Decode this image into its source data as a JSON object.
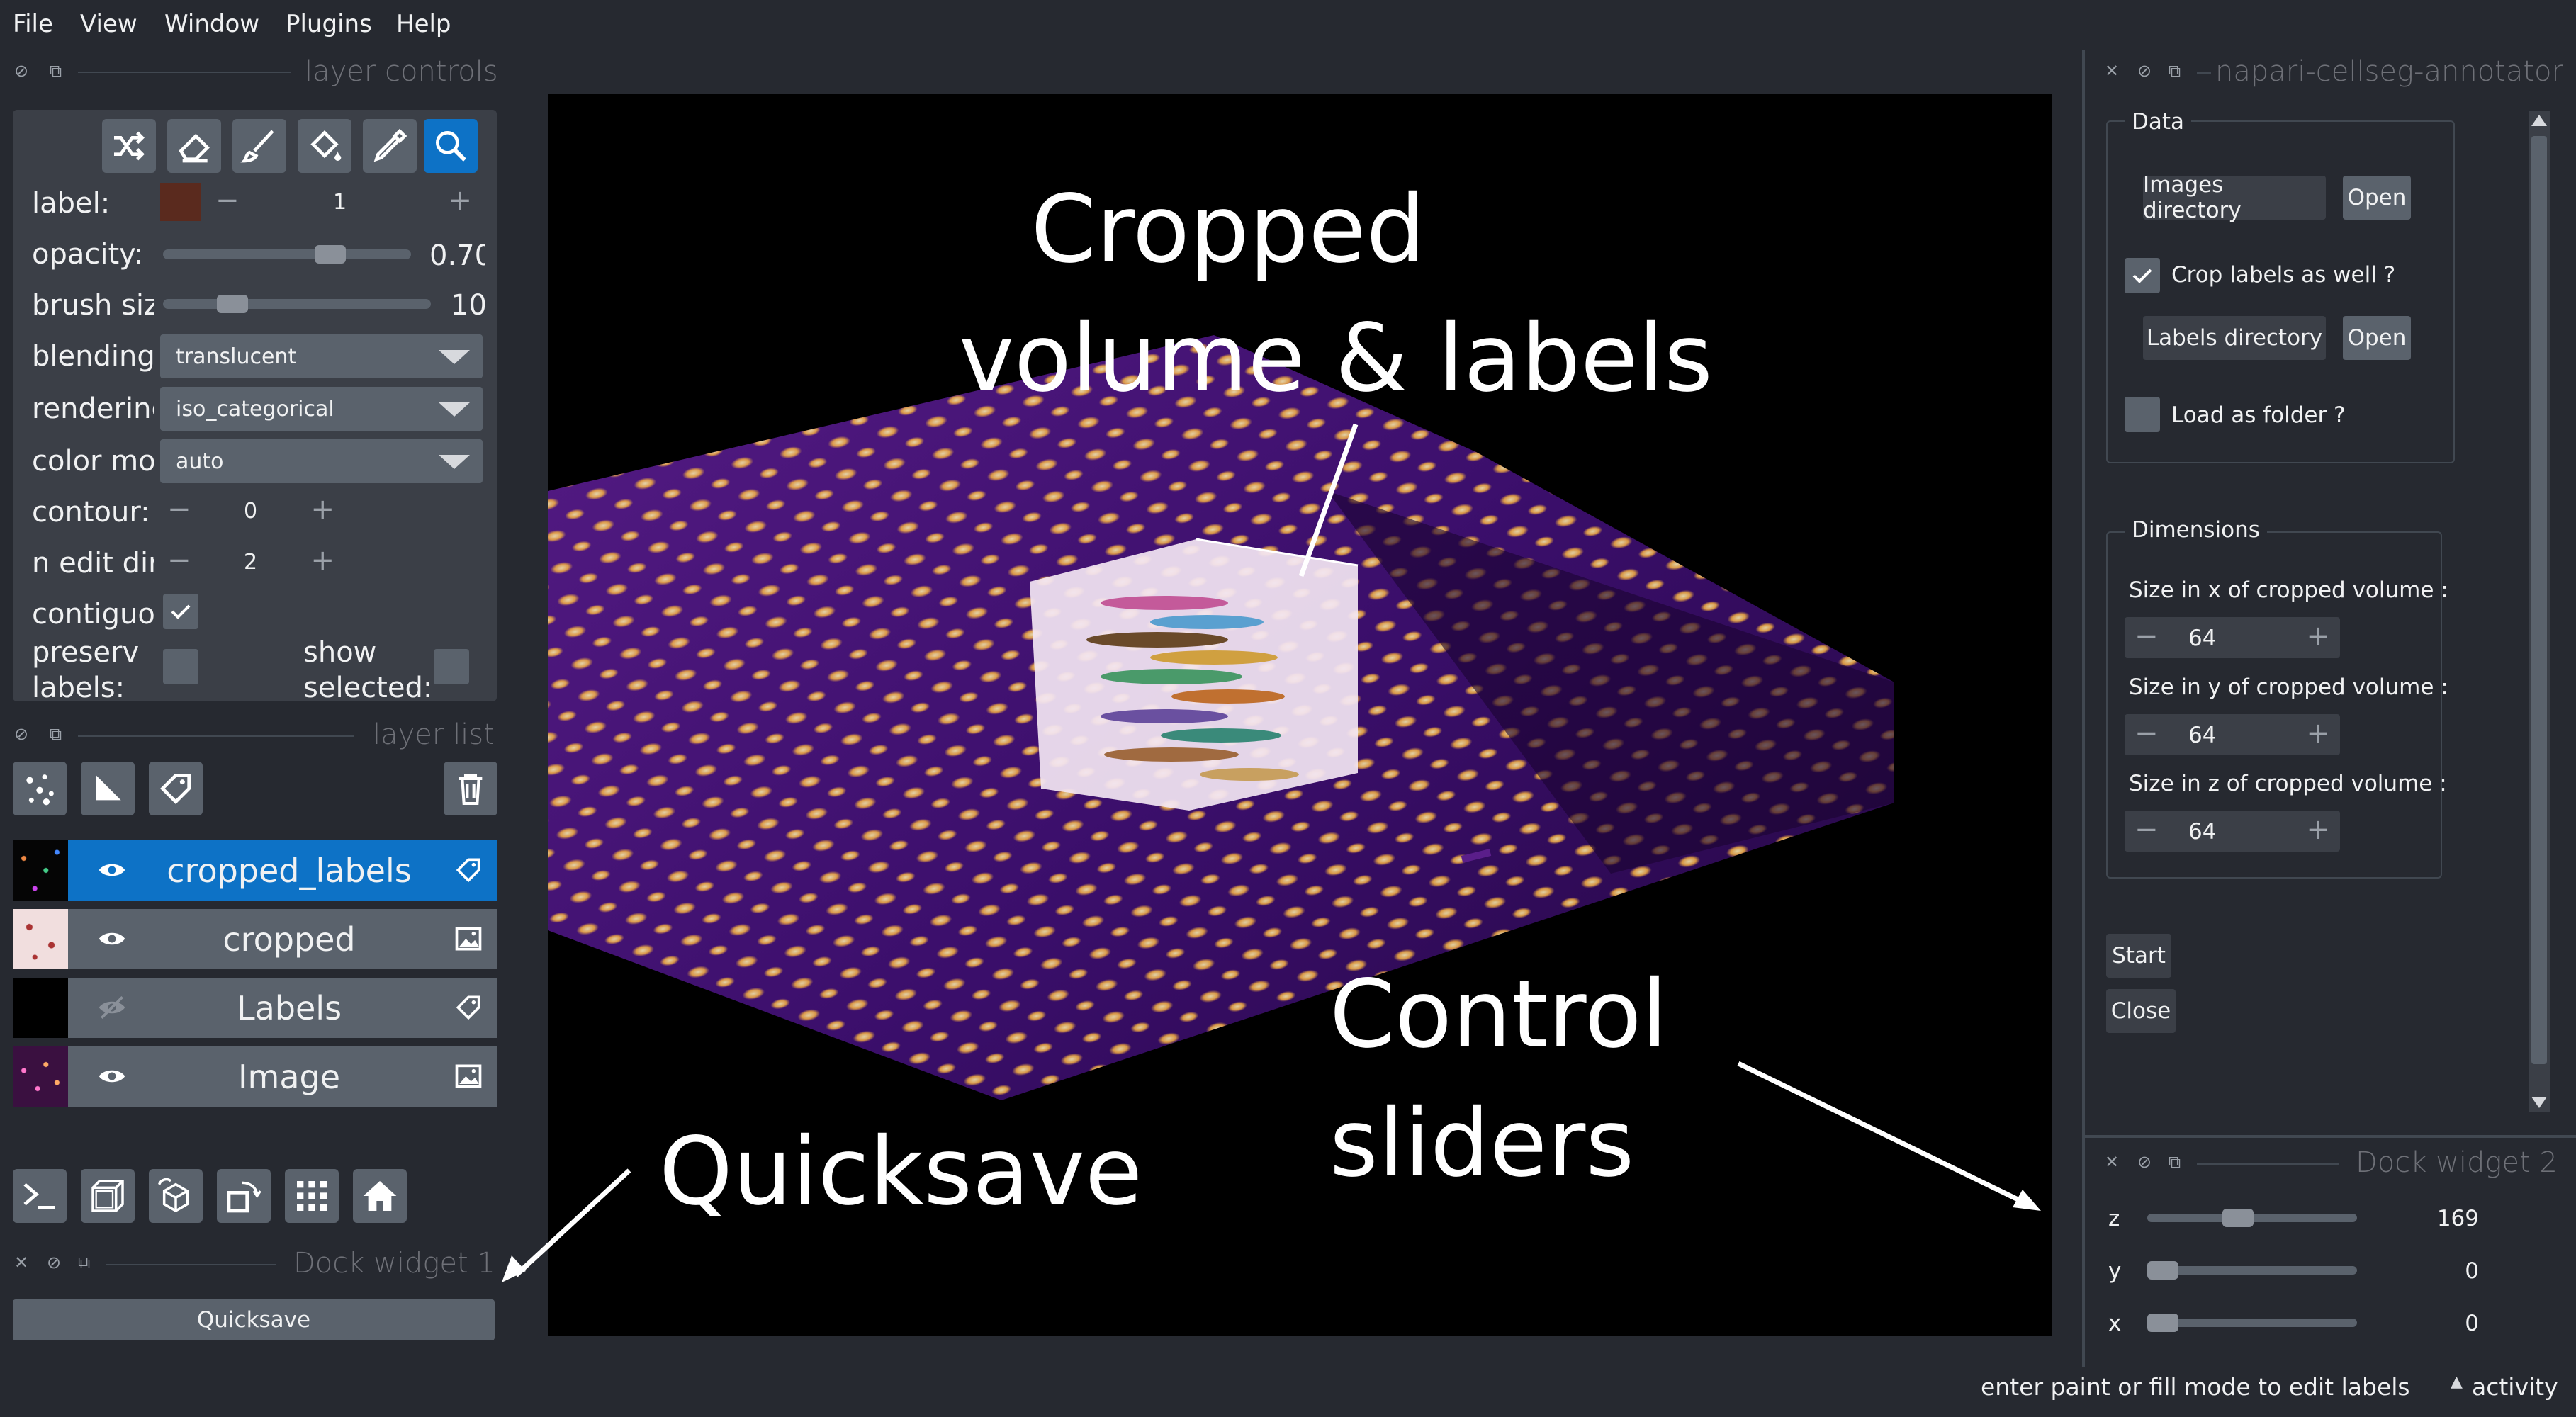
{
  "menu": [
    "File",
    "View",
    "Window",
    "Plugins",
    "Help"
  ],
  "layer_controls": {
    "title": "layer controls",
    "label_label": "label:",
    "label_value": "1",
    "label_color": "#5a2a1e",
    "opacity_label": "opacity:",
    "opacity_value": "0.70",
    "opacity_fraction": 0.7,
    "brush_label": "brush siz",
    "brush_value": "10",
    "blending_label": "blending:",
    "blending_value": "translucent",
    "rendering_label": "rendering",
    "rendering_value": "iso_categorical",
    "color_mode_label": "color mo",
    "color_mode_value": "auto",
    "contour_label": "contour:",
    "contour_value": "0",
    "n_edit_label": "n edit dir",
    "n_edit_value": "2",
    "contiguous_label": "contiguou",
    "preserve_label": "preserve labels:",
    "show_selected_label": "show selected:",
    "tools": [
      "shuffle-icon",
      "eraser-icon",
      "paintbrush-icon",
      "fill-bucket-icon",
      "color-picker-icon",
      "zoom-icon"
    ]
  },
  "layer_list": {
    "title": "layer list",
    "layers": [
      {
        "name": "cropped_labels",
        "type": "labels",
        "selected": true,
        "visible": true
      },
      {
        "name": "cropped",
        "type": "image",
        "selected": false,
        "visible": true
      },
      {
        "name": "Labels",
        "type": "labels",
        "selected": false,
        "visible": false
      },
      {
        "name": "Image",
        "type": "image",
        "selected": false,
        "visible": true
      }
    ]
  },
  "dock1": {
    "title": "Dock widget 1",
    "quicksave_label": "Quicksave"
  },
  "canvas": {
    "annotation_crop_line1": "Cropped",
    "annotation_crop_line2": "volume & labels",
    "annotation_quicksave": "Quicksave",
    "annotation_sliders_line1": "Control",
    "annotation_sliders_line2": "sliders"
  },
  "plugin": {
    "title": "napari-cellseg-annotator:",
    "data_group": "Data",
    "images_dir_label": "Images directory",
    "open_label": "Open",
    "crop_labels_label": "Crop labels as well ?",
    "crop_labels_checked": true,
    "labels_dir_label": "Labels directory",
    "load_folder_label": "Load as folder ?",
    "load_folder_checked": false,
    "dimensions_group": "Dimensions",
    "size_x_label": "Size in x of cropped volume :",
    "size_y_label": "Size in y of cropped volume :",
    "size_z_label": "Size in z of cropped volume :",
    "size_x": "64",
    "size_y": "64",
    "size_z": "64",
    "start_label": "Start",
    "close_label": "Close"
  },
  "dock2": {
    "title": "Dock widget 2",
    "sliders": [
      {
        "axis": "z",
        "value": "169",
        "fraction": 0.42
      },
      {
        "axis": "y",
        "value": "0",
        "fraction": 0.0
      },
      {
        "axis": "x",
        "value": "0",
        "fraction": 0.0
      }
    ]
  },
  "status": {
    "message": "enter paint or fill mode to edit labels",
    "activity_label": "activity"
  },
  "colors": {
    "background": "#262930",
    "panel": "#3b3f47",
    "widget": "#5a626c",
    "accent": "#0d72c6"
  }
}
